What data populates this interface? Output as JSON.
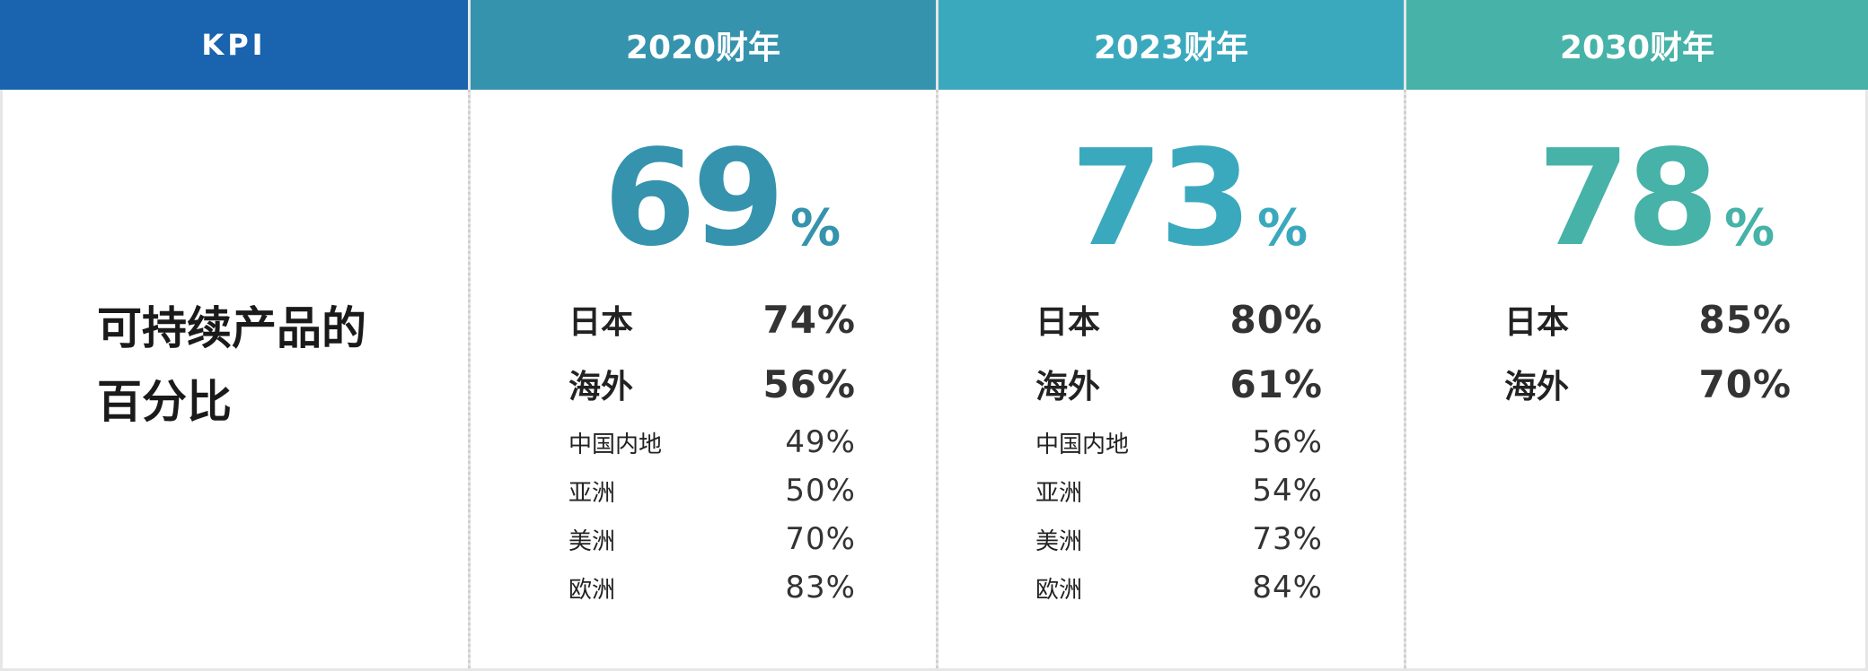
{
  "header": {
    "kpi": "KPI",
    "col1": "2020财年",
    "col2": "2023财年",
    "col3": "2030财年"
  },
  "colors": {
    "kpi_header": "#1a63ae",
    "col1_header": "#3593ad",
    "col2_header": "#3ba9bd",
    "col3_header": "#46b2a8",
    "col1_accent": "#3593ad",
    "col2_accent": "#3ba9bd",
    "col3_accent": "#46b2a8"
  },
  "kpi": {
    "line1": "可持续产品的",
    "line2": "百分比"
  },
  "columns": [
    {
      "big": "69",
      "pct": "%",
      "japan_label": "日本",
      "japan_value": "74%",
      "overseas_label": "海外",
      "overseas_value": "56%",
      "regions": [
        {
          "label": "中国内地",
          "value": "49%"
        },
        {
          "label": "亚洲",
          "value": "50%"
        },
        {
          "label": "美洲",
          "value": "70%"
        },
        {
          "label": "欧洲",
          "value": "83%"
        }
      ]
    },
    {
      "big": "73",
      "pct": "%",
      "japan_label": "日本",
      "japan_value": "80%",
      "overseas_label": "海外",
      "overseas_value": "61%",
      "regions": [
        {
          "label": "中国内地",
          "value": "56%"
        },
        {
          "label": "亚洲",
          "value": "54%"
        },
        {
          "label": "美洲",
          "value": "73%"
        },
        {
          "label": "欧洲",
          "value": "84%"
        }
      ]
    },
    {
      "big": "78",
      "pct": "%",
      "japan_label": "日本",
      "japan_value": "85%",
      "overseas_label": "海外",
      "overseas_value": "70%"
    }
  ]
}
